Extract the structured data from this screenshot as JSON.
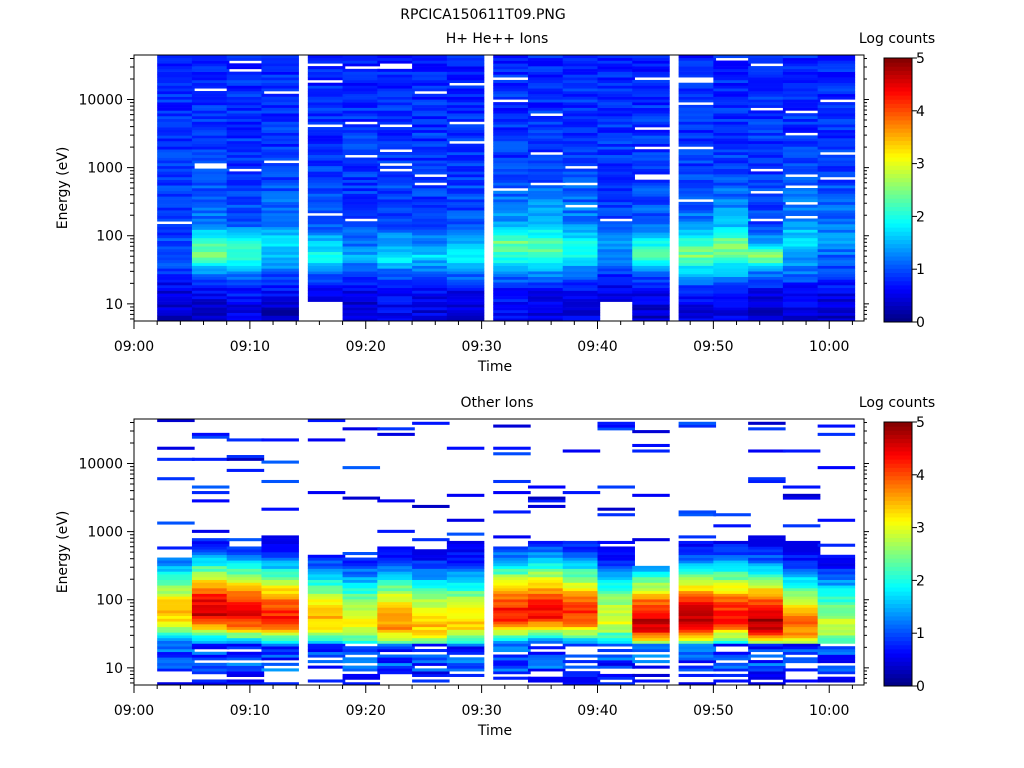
{
  "figure": {
    "title": "RPCICA150611T09.PNG"
  },
  "colors": {
    "colormap": [
      "#00007f",
      "#0000ff",
      "#007fff",
      "#00ffff",
      "#7fff7f",
      "#ffff00",
      "#ff7f00",
      "#ff0000",
      "#7f0000"
    ]
  },
  "chart_data": [
    {
      "type": "heatmap",
      "title": "H+ He++ Ions",
      "xlabel": "Time",
      "ylabel": "Energy (eV)",
      "x_ticks": [
        "09:00",
        "09:10",
        "09:20",
        "09:30",
        "09:40",
        "09:50",
        "10:00"
      ],
      "y_ticks": [
        "10",
        "100",
        "1000",
        "10000"
      ],
      "y_scale": "log",
      "ylim": [
        5.6,
        45000
      ],
      "xlim": [
        "09:00",
        "10:03"
      ],
      "colorbar": {
        "label": "Log counts",
        "ticks": [
          "0",
          "1",
          "2",
          "3",
          "4",
          "5"
        ],
        "range": [
          0,
          5
        ]
      },
      "cells": {
        "time_start": [
          "09:02",
          "09:05",
          "09:08",
          "09:11",
          "09:15",
          "09:18",
          "09:21",
          "09:24",
          "09:27",
          "09:31",
          "09:34",
          "09:37",
          "09:40",
          "09:43",
          "09:47",
          "09:50",
          "09:53",
          "09:56",
          "09:59"
        ],
        "cell_minutes": 3.2,
        "energy_channel_count": 96,
        "low_energy_profile": [
          {
            "energy": 8,
            "log_counts": [
              0.4,
              0.4,
              0.5,
              0.3,
              -1,
              0.4,
              0.6,
              0.5,
              0.4,
              0.6,
              0.5,
              0.5,
              -1,
              0.4,
              0.5,
              0.5,
              0.4,
              0.5,
              0.4
            ]
          },
          {
            "energy": 15,
            "log_counts": [
              0.5,
              0.6,
              0.7,
              0.6,
              0.6,
              0.5,
              0.7,
              0.6,
              0.6,
              0.7,
              0.6,
              0.6,
              0.5,
              0.6,
              0.7,
              0.7,
              0.6,
              0.6,
              0.6
            ]
          },
          {
            "energy": 30,
            "log_counts": [
              0.8,
              1.4,
              1.3,
              1.1,
              1.2,
              0.9,
              1.2,
              1.1,
              1.3,
              1.3,
              1.4,
              1.2,
              0.9,
              1.2,
              1.6,
              1.6,
              1.3,
              1.2,
              1.0
            ]
          },
          {
            "energy": 50,
            "log_counts": [
              1.0,
              2.5,
              2.1,
              1.6,
              2.0,
              1.4,
              1.9,
              1.7,
              1.9,
              2.1,
              2.2,
              2.0,
              1.2,
              2.3,
              2.5,
              2.3,
              2.6,
              1.5,
              1.1
            ]
          },
          {
            "energy": 80,
            "log_counts": [
              1.0,
              2.3,
              2.0,
              1.7,
              1.6,
              1.2,
              1.4,
              1.3,
              1.5,
              2.4,
              2.3,
              2.0,
              1.3,
              1.9,
              2.2,
              2.5,
              1.4,
              1.9,
              1.4
            ]
          },
          {
            "energy": 150,
            "log_counts": [
              0.9,
              1.2,
              1.1,
              1.3,
              1.0,
              0.9,
              1.0,
              0.9,
              1.0,
              1.4,
              1.5,
              1.3,
              0.9,
              1.1,
              1.2,
              1.5,
              1.0,
              1.4,
              1.2
            ]
          },
          {
            "energy": 1000,
            "log_counts": [
              0.9,
              0.9,
              0.9,
              0.9,
              0.9,
              0.9,
              0.9,
              0.9,
              0.9,
              0.9,
              0.9,
              0.9,
              0.9,
              0.9,
              0.9,
              0.9,
              0.9,
              0.9,
              0.9
            ]
          },
          {
            "energy": 30000,
            "log_counts": [
              0.8,
              0.8,
              0.8,
              0.8,
              0.8,
              0.8,
              0.8,
              0.8,
              0.8,
              0.8,
              0.8,
              0.8,
              0.8,
              0.8,
              0.8,
              0.8,
              0.8,
              0.8,
              0.8
            ]
          }
        ]
      }
    },
    {
      "type": "heatmap",
      "title": "Other Ions",
      "xlabel": "Time",
      "ylabel": "Energy (eV)",
      "x_ticks": [
        "09:00",
        "09:10",
        "09:20",
        "09:30",
        "09:40",
        "09:50",
        "10:00"
      ],
      "y_ticks": [
        "10",
        "100",
        "1000",
        "10000"
      ],
      "y_scale": "log",
      "ylim": [
        5.6,
        45000
      ],
      "xlim": [
        "09:00",
        "10:03"
      ],
      "colorbar": {
        "label": "Log counts",
        "ticks": [
          "0",
          "1",
          "2",
          "3",
          "4",
          "5"
        ],
        "range": [
          0,
          5
        ]
      },
      "cells": {
        "time_start": [
          "09:02",
          "09:05",
          "09:08",
          "09:11",
          "09:15",
          "09:18",
          "09:21",
          "09:24",
          "09:27",
          "09:31",
          "09:34",
          "09:37",
          "09:40",
          "09:43",
          "09:47",
          "09:50",
          "09:53",
          "09:56",
          "09:59"
        ],
        "cell_minutes": 3.2,
        "energy_channel_count": 96,
        "peak_energy": [
          60,
          65,
          60,
          55,
          50,
          45,
          45,
          40,
          45,
          60,
          65,
          60,
          50,
          45,
          50,
          55,
          45,
          40,
          40
        ],
        "peak_log_counts": [
          3.4,
          4.6,
          4.4,
          4.2,
          3.4,
          3.0,
          3.7,
          3.4,
          3.3,
          4.3,
          4.4,
          4.1,
          3.0,
          4.6,
          4.7,
          4.3,
          4.8,
          3.8,
          2.8
        ],
        "upper_extent_energy": [
          400,
          800,
          600,
          900,
          450,
          400,
          600,
          550,
          700,
          600,
          700,
          700,
          600,
          300,
          700,
          700,
          900,
          700,
          450
        ]
      }
    }
  ]
}
